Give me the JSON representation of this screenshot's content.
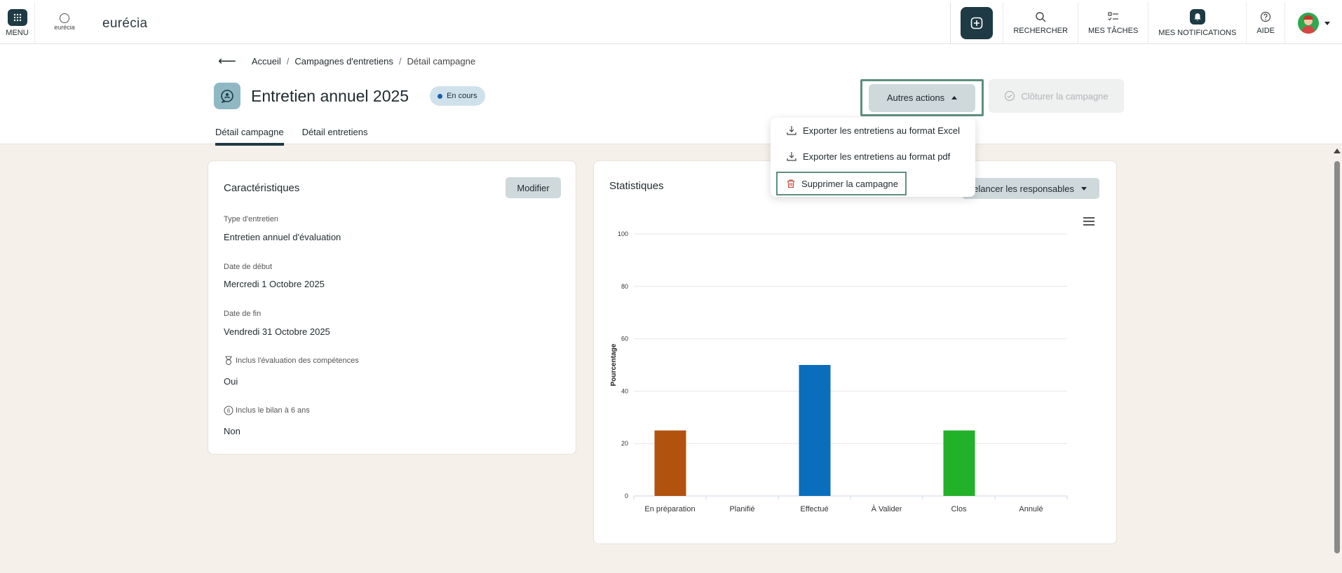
{
  "topbar": {
    "menu_label": "MENU",
    "logo_small_text": "eurécia",
    "brand": "eurécia",
    "nav": {
      "search": "RECHERCHER",
      "tasks": "MES TÂCHES",
      "notifications": "MES NOTIFICATIONS",
      "help": "AIDE"
    }
  },
  "breadcrumb": {
    "home": "Accueil",
    "campaigns": "Campagnes d'entretiens",
    "current": "Détail campagne"
  },
  "campaign": {
    "title": "Entretien annuel 2025",
    "status": "En cours"
  },
  "actions": {
    "other_actions": "Autres actions",
    "close_campaign": "Clôturer la campagne"
  },
  "dropdown": {
    "export_excel": "Exporter les entretiens au format Excel",
    "export_pdf": "Exporter les entretiens au format pdf",
    "delete": "Supprimer la campagne"
  },
  "tabs": {
    "detail_campaign": "Détail campagne",
    "detail_interviews": "Détail entretiens"
  },
  "characteristics": {
    "title": "Caractéristiques",
    "edit": "Modifier",
    "type_label": "Type d'entretien",
    "type_value": "Entretien annuel d'évaluation",
    "start_label": "Date de début",
    "start_value": "Mercredi 1 Octobre 2025",
    "end_label": "Date de fin",
    "end_value": "Vendredi 31 Octobre 2025",
    "skills_label": "Inclus l'évaluation des compétences",
    "skills_value": "Oui",
    "review6_label": "Inclus le bilan à 6 ans",
    "review6_value": "Non"
  },
  "statistics": {
    "title": "Statistiques",
    "remind": "Relancer les responsables"
  },
  "chart_data": {
    "type": "bar",
    "categories": [
      "En préparation",
      "Planifié",
      "Effectué",
      "À Valider",
      "Clos",
      "Annulé"
    ],
    "values": [
      25,
      0,
      50,
      0,
      25,
      0
    ],
    "colors": [
      "#b2520f",
      "#999999",
      "#0b6ebd",
      "#999999",
      "#22b22a",
      "#999999"
    ],
    "ylabel": "Pourcentage",
    "xlabel": "",
    "ylim": [
      0,
      100
    ],
    "yticks": [
      0,
      20,
      40,
      60,
      80,
      100
    ],
    "grid": true
  }
}
